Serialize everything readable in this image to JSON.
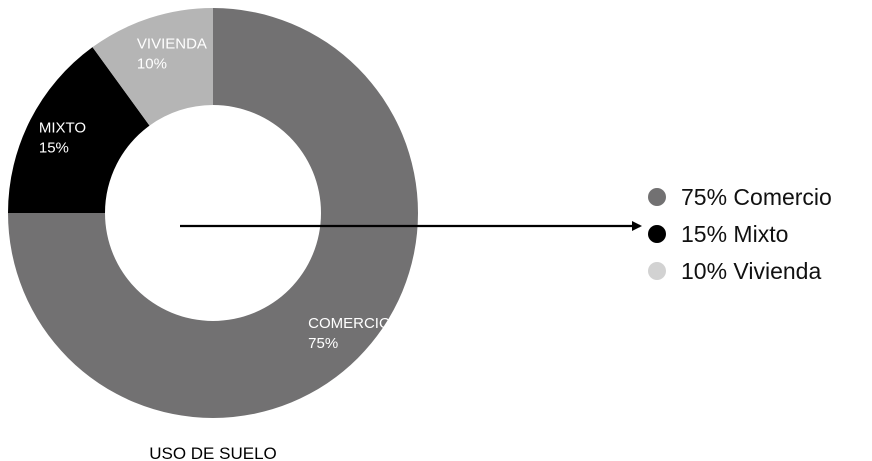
{
  "chart_data": {
    "type": "pie",
    "title": "USO DE SUELO",
    "categories": [
      "COMERCIO",
      "MIXTO",
      "VIVIENDA"
    ],
    "values": [
      75,
      15,
      10
    ],
    "value_labels": [
      "75%",
      "15%",
      "10%"
    ],
    "colors": [
      "#727172",
      "#000000",
      "#b5b5b5"
    ],
    "legend_position": "right",
    "legend": [
      {
        "label": "75% Comercio",
        "color": "#727172"
      },
      {
        "label": "15% Mixto",
        "color": "#000000"
      },
      {
        "label": "10% Vivienda",
        "color": "#d2d2d2"
      }
    ]
  }
}
